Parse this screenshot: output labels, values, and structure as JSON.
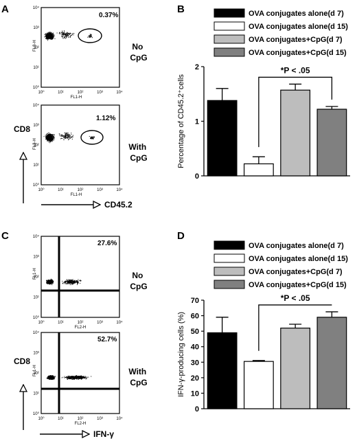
{
  "panels": {
    "A": {
      "label": "A",
      "plots": [
        {
          "percent": "0.37%",
          "condition": "No\nCpG",
          "ylabel": "FL3-H",
          "xlabel": "FL1-H"
        },
        {
          "percent": "1.12%",
          "condition": "With\nCpG",
          "ylabel": "FL3-H",
          "xlabel": "FL1-H"
        }
      ],
      "y_arrow_label": "CD8",
      "x_arrow_label": "CD45.2",
      "decades": [
        "10⁰",
        "10¹",
        "10²",
        "10³",
        "10⁴"
      ]
    },
    "C": {
      "label": "C",
      "plots": [
        {
          "percent": "27.6%",
          "condition": "No\nCpG",
          "ylabel": "FL1-H",
          "xlabel": "FL2-H"
        },
        {
          "percent": "52.7%",
          "condition": "With\nCpG",
          "ylabel": "FL1-H",
          "xlabel": "FL2-H"
        }
      ],
      "y_arrow_label": "CD8",
      "x_arrow_label": "IFN-γ",
      "decades": [
        "10⁰",
        "10¹",
        "10²",
        "10³",
        "10⁴"
      ]
    }
  },
  "chart_data": [
    {
      "panel": "B",
      "type": "bar",
      "categories": [
        "OVA conjugates alone(d 7)",
        "OVA conjugates alone(d 15)",
        "OVA conjugates+CpG(d 7)",
        "OVA conjugates+CpG(d 15)"
      ],
      "values": [
        1.38,
        0.22,
        1.57,
        1.22
      ],
      "errors": [
        0.22,
        0.13,
        0.11,
        0.05
      ],
      "colors": [
        "#000000",
        "#ffffff",
        "#bdbdbd",
        "#808080"
      ],
      "ylabel": "Percentage of CD45.2⁺cells",
      "ylim": [
        0,
        2
      ],
      "yticks": [
        0,
        1,
        2
      ],
      "annotation": "*P < .05",
      "bracket": [
        1,
        3
      ],
      "legend_position": "top"
    },
    {
      "panel": "D",
      "type": "bar",
      "categories": [
        "OVA conjugates alone(d 7)",
        "OVA conjugates alone(d 15)",
        "OVA conjugates+CpG(d 7)",
        "OVA conjugates+CpG(d 15)"
      ],
      "values": [
        49,
        30.5,
        52,
        59
      ],
      "errors": [
        10,
        0.6,
        2.5,
        3.5
      ],
      "colors": [
        "#000000",
        "#ffffff",
        "#bdbdbd",
        "#808080"
      ],
      "ylabel": "IFN-γ-producing cells (%)",
      "ylim": [
        0,
        70
      ],
      "yticks": [
        0,
        10,
        20,
        30,
        40,
        50,
        60,
        70
      ],
      "annotation": "*P < .05",
      "bracket": [
        1,
        3
      ],
      "legend_position": "top"
    }
  ]
}
